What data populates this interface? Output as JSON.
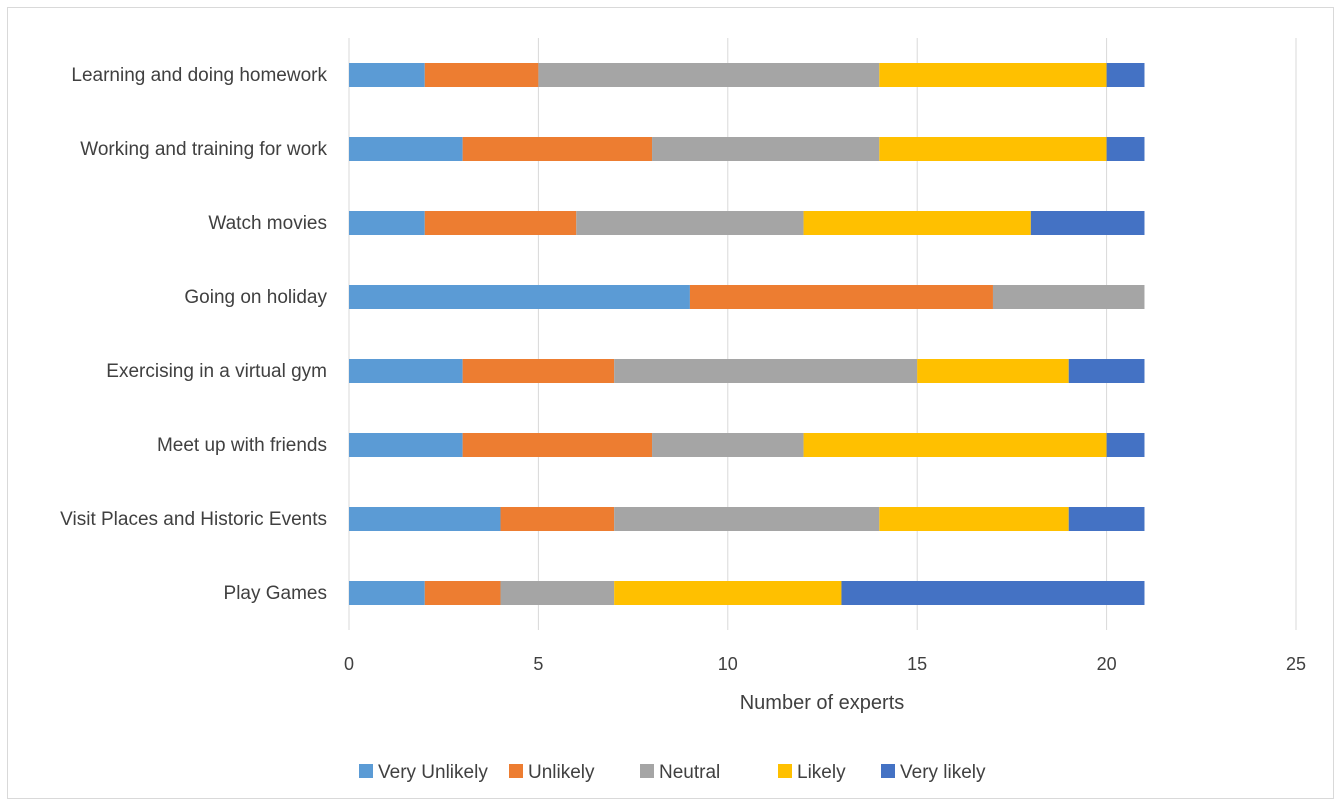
{
  "chart_data": {
    "type": "bar",
    "orientation": "horizontal",
    "stacked": true,
    "title": "",
    "xlabel": "Number of experts",
    "ylabel": "",
    "xlim": [
      0,
      25
    ],
    "xticks": [
      0,
      5,
      10,
      15,
      20,
      25
    ],
    "grid": true,
    "legend_position": "bottom",
    "categories": [
      "Learning and doing homework",
      "Working and training for work",
      "Watch movies",
      "Going on holiday",
      "Exercising in a virtual gym",
      "Meet up with friends",
      "Visit Places and Historic Events",
      "Play Games"
    ],
    "series": [
      {
        "name": "Very Unlikely",
        "color": "#5b9bd5",
        "values": [
          2,
          3,
          2,
          9,
          3,
          3,
          4,
          2
        ]
      },
      {
        "name": "Unlikely",
        "color": "#ed7d31",
        "values": [
          3,
          5,
          4,
          8,
          4,
          5,
          3,
          2
        ]
      },
      {
        "name": "Neutral",
        "color": "#a5a5a5",
        "values": [
          9,
          6,
          6,
          4,
          8,
          4,
          7,
          3
        ]
      },
      {
        "name": "Likely",
        "color": "#ffc000",
        "values": [
          6,
          6,
          6,
          0,
          4,
          8,
          5,
          6
        ]
      },
      {
        "name": "Very likely",
        "color": "#4472c4",
        "values": [
          1,
          1,
          3,
          0,
          2,
          1,
          2,
          8
        ]
      }
    ]
  }
}
